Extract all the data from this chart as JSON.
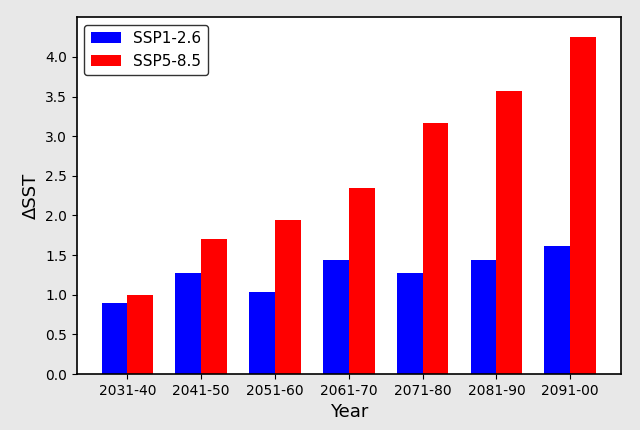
{
  "categories": [
    "2031-40",
    "2041-50",
    "2051-60",
    "2061-70",
    "2071-80",
    "2081-90",
    "2091-00"
  ],
  "ssp1_values": [
    0.9,
    1.28,
    1.03,
    1.44,
    1.28,
    1.44,
    1.61
  ],
  "ssp5_values": [
    1.0,
    1.7,
    1.94,
    2.35,
    3.16,
    3.57,
    4.25
  ],
  "ssp1_color": "#0000ff",
  "ssp5_color": "#ff0000",
  "ssp1_label": "SSP1-2.6",
  "ssp5_label": "SSP5-8.5",
  "xlabel": "Year",
  "ylabel": "ΔSST",
  "ylim": [
    0.0,
    4.5
  ],
  "yticks": [
    0.0,
    0.5,
    1.0,
    1.5,
    2.0,
    2.5,
    3.0,
    3.5,
    4.0
  ],
  "bar_width": 0.35,
  "figsize": [
    6.4,
    4.3
  ],
  "dpi": 100,
  "figure_background_color": "#e8e8e8",
  "axes_background_color": "#ffffff",
  "legend_fontsize": 11,
  "axis_label_fontsize": 13,
  "tick_fontsize": 10,
  "spine_color": "#000000",
  "spine_linewidth": 1.2
}
